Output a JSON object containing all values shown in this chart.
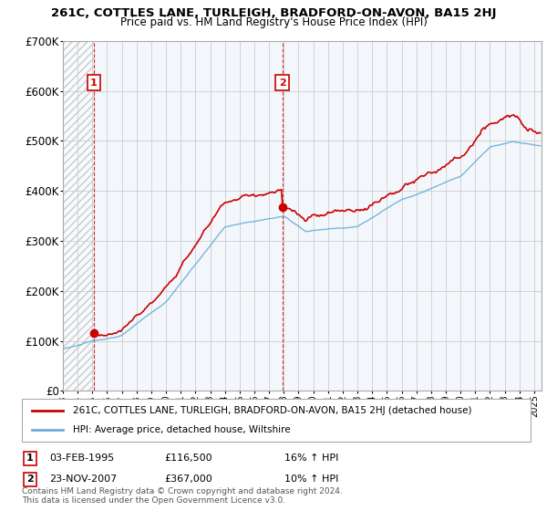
{
  "title": "261C, COTTLES LANE, TURLEIGH, BRADFORD-ON-AVON, BA15 2HJ",
  "subtitle": "Price paid vs. HM Land Registry's House Price Index (HPI)",
  "ylim": [
    0,
    700000
  ],
  "yticks": [
    0,
    100000,
    200000,
    300000,
    400000,
    500000,
    600000,
    700000
  ],
  "ytick_labels": [
    "£0",
    "£100K",
    "£200K",
    "£300K",
    "£400K",
    "£500K",
    "£600K",
    "£700K"
  ],
  "sale1_year": 1995.09,
  "sale1_price": 116500,
  "sale1_label": "1",
  "sale1_date": "03-FEB-1995",
  "sale1_hpi": "16% ↑ HPI",
  "sale2_year": 2007.9,
  "sale2_price": 367000,
  "sale2_label": "2",
  "sale2_date": "23-NOV-2007",
  "sale2_hpi": "10% ↑ HPI",
  "hpi_color": "#6baed6",
  "hpi_fill_color": "#ddeeff",
  "price_color": "#cc0000",
  "hatch_color": "#cccccc",
  "bg_blue": "#e8f0fa",
  "grid_color": "#cccccc",
  "legend1_label": "261C, COTTLES LANE, TURLEIGH, BRADFORD-ON-AVON, BA15 2HJ (detached house)",
  "legend2_label": "HPI: Average price, detached house, Wiltshire",
  "footer": "Contains HM Land Registry data © Crown copyright and database right 2024.\nThis data is licensed under the Open Government Licence v3.0.",
  "xmin": 1993,
  "xmax": 2025.5
}
